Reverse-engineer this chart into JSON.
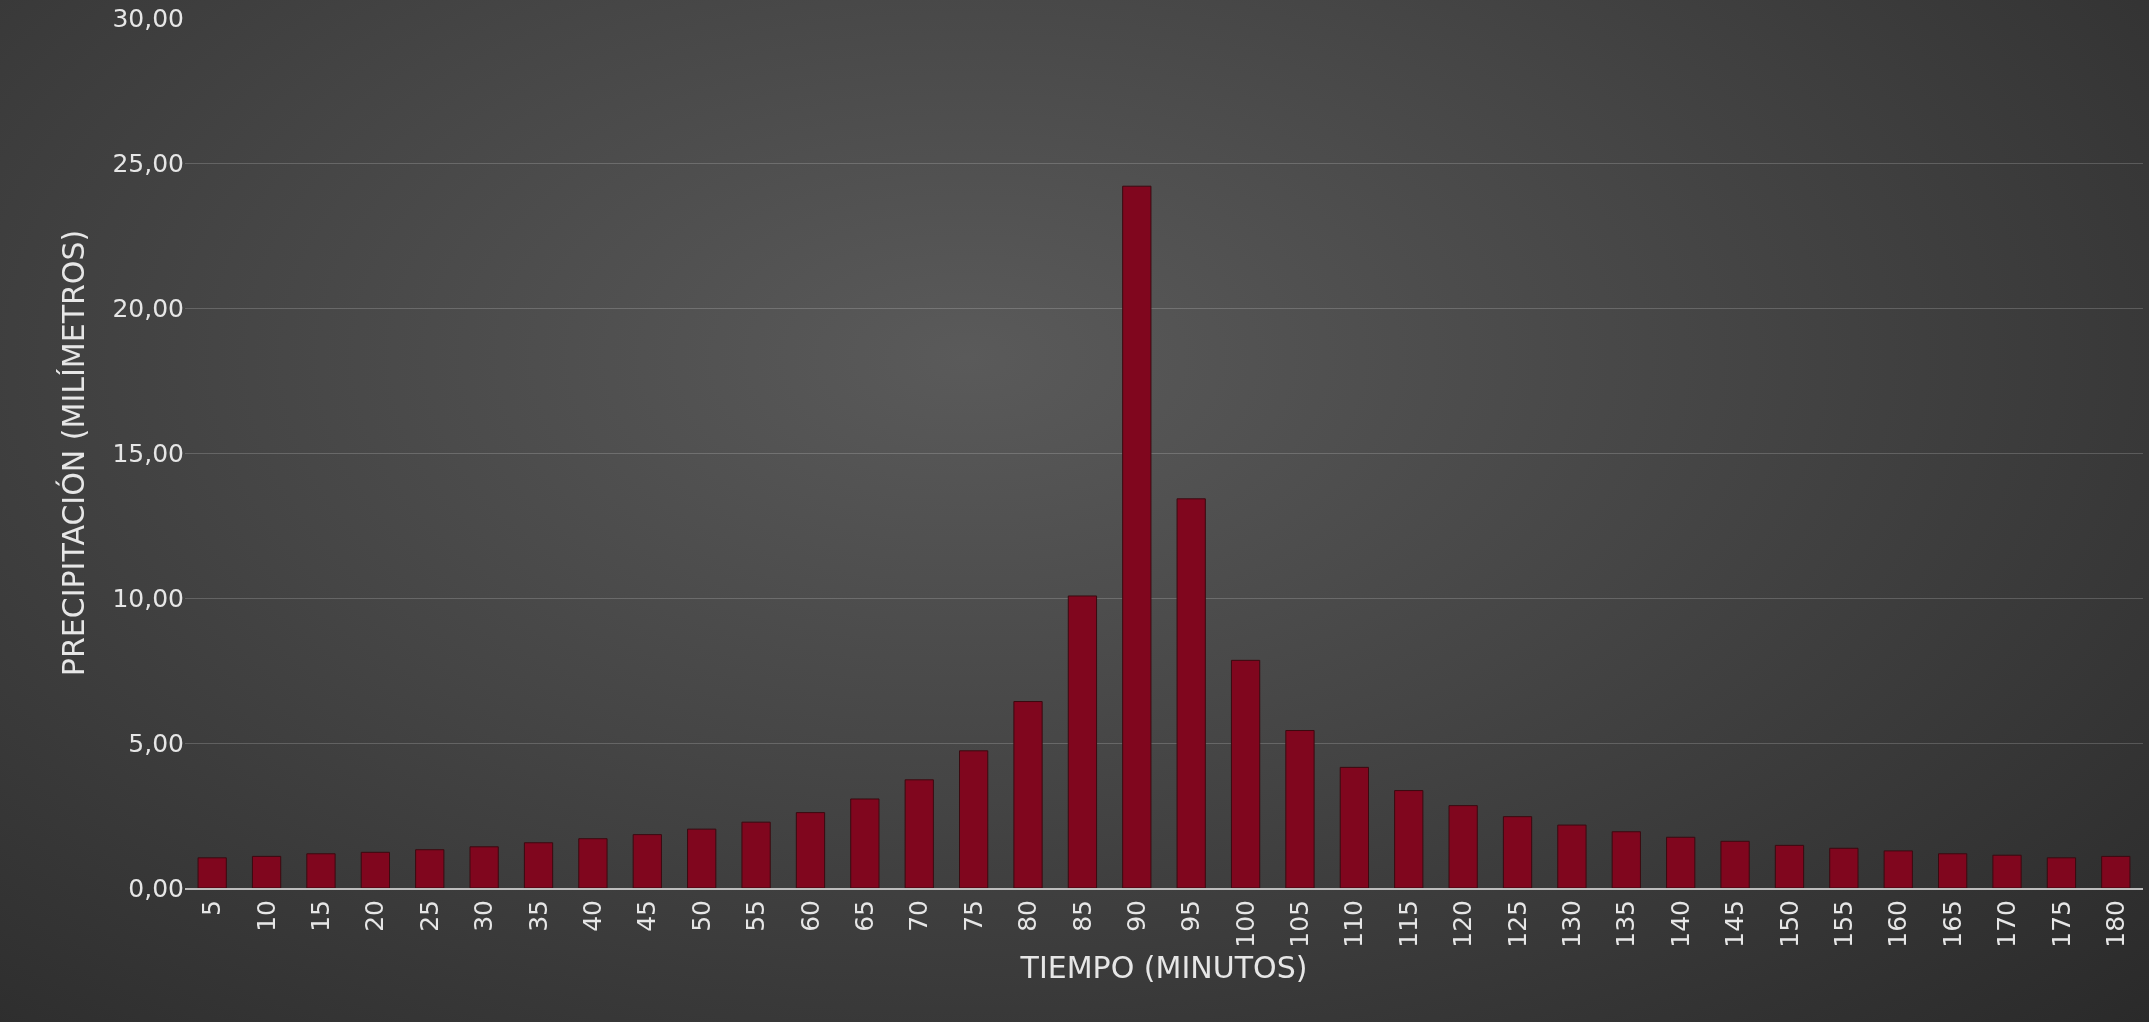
{
  "chart_data": {
    "type": "bar",
    "xlabel": "TIEMPO (MINUTOS)",
    "ylabel": "PRECIPITACIÓN (MILÍMETROS)",
    "categories": [
      "5",
      "10",
      "15",
      "20",
      "25",
      "30",
      "35",
      "40",
      "45",
      "50",
      "55",
      "60",
      "65",
      "70",
      "75",
      "80",
      "85",
      "90",
      "95",
      "100",
      "105",
      "110",
      "115",
      "120",
      "125",
      "130",
      "135",
      "140",
      "145",
      "150",
      "155",
      "160",
      "165",
      "170",
      "175",
      "180"
    ],
    "values": [
      1.04,
      1.09,
      1.18,
      1.23,
      1.32,
      1.42,
      1.56,
      1.7,
      1.84,
      2.03,
      2.27,
      2.6,
      3.07,
      3.73,
      4.73,
      6.43,
      10.07,
      24.2,
      13.42,
      7.85,
      5.43,
      4.16,
      3.36,
      2.84,
      2.46,
      2.17,
      1.94,
      1.75,
      1.61,
      1.47,
      1.37,
      1.28,
      1.18,
      1.13,
      1.04,
      1.09
    ],
    "color": "#80061e",
    "ylim": [
      0,
      30
    ],
    "yticks": [
      {
        "value": 0,
        "label": "0,00"
      },
      {
        "value": 5,
        "label": "5,00"
      },
      {
        "value": 10,
        "label": "10,00"
      },
      {
        "value": 15,
        "label": "15,00"
      },
      {
        "value": 20,
        "label": "20,00"
      },
      {
        "value": 25,
        "label": "25,00"
      },
      {
        "value": 30,
        "label": "30,00"
      }
    ],
    "grid": "y"
  }
}
